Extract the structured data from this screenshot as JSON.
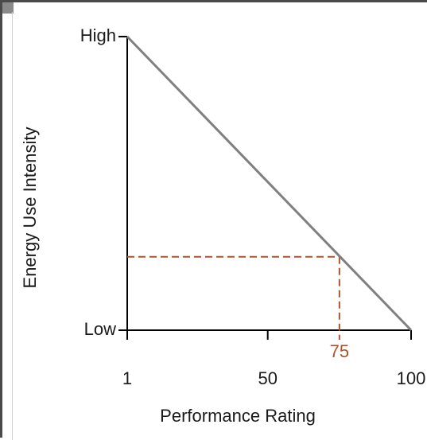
{
  "chart_data": {
    "type": "line",
    "xlabel": "Performance Rating",
    "ylabel": "Energy Use Intensity",
    "xlim": [
      1,
      100
    ],
    "ylim": [
      0,
      1
    ],
    "x_ticks": [
      {
        "value": 1,
        "label": "1"
      },
      {
        "value": 50,
        "label": "50"
      },
      {
        "value": 100,
        "label": "100"
      }
    ],
    "y_ticks": [
      {
        "value": 0,
        "label": "Low"
      },
      {
        "value": 1,
        "label": "High"
      }
    ],
    "series": [
      {
        "x": [
          1,
          100
        ],
        "y": [
          1,
          0
        ],
        "color": "#808080"
      }
    ],
    "reference": {
      "x": 75,
      "y": 0.25,
      "label": "75",
      "color": "#b1532a",
      "style": "dashed"
    },
    "grid": false
  }
}
